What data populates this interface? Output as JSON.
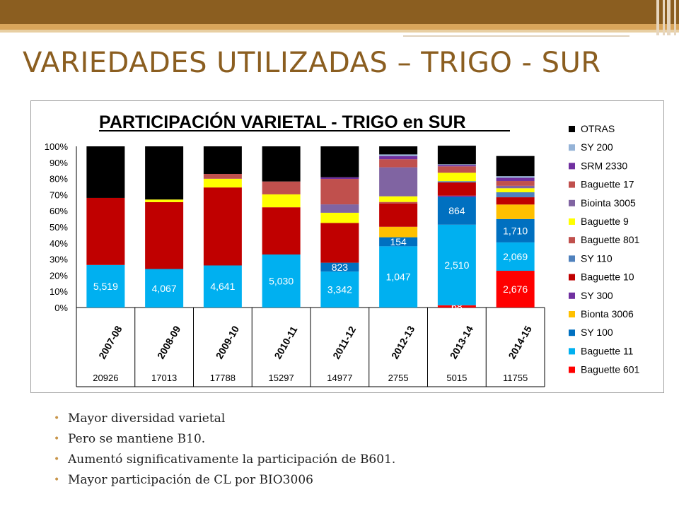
{
  "slide": {
    "title": "VARIEDADES UTILIZADAS – TRIGO - SUR",
    "bullets": [
      "Mayor diversidad varietal",
      "Pero se mantiene B10.",
      "Aumentó significativamente la participación de B601.",
      "Mayor participación de CL por BIO3006"
    ]
  },
  "chart_data": {
    "type": "bar",
    "stacked": "percent",
    "title": "PARTICIPACIÓN VARIETAL - TRIGO en SUR",
    "categories": [
      "2007-08",
      "2008-09",
      "2009-10",
      "2010-11",
      "2011-12",
      "2012-13",
      "2013-14",
      "2014-15"
    ],
    "totals": [
      "20926",
      "17013",
      "17788",
      "15297",
      "14977",
      "2755",
      "5015",
      "11755"
    ],
    "yticks": [
      "0%",
      "10%",
      "20%",
      "30%",
      "40%",
      "50%",
      "60%",
      "70%",
      "80%",
      "90%",
      "100%"
    ],
    "ylim": [
      0,
      100
    ],
    "legend_position": "right",
    "series": [
      {
        "name": "Baguette 601",
        "color": "#ff0000",
        "values": [
          0,
          0,
          0,
          0,
          0,
          0,
          1.4,
          22.8
        ],
        "labels": [
          "",
          "",
          "",
          "",
          "",
          "",
          "68",
          "2,676"
        ]
      },
      {
        "name": "Baguette 11",
        "color": "#00b0f0",
        "values": [
          26.4,
          23.9,
          26.1,
          32.9,
          22.3,
          38.0,
          50.0,
          17.6
        ],
        "labels": [
          "5,519",
          "4,067",
          "4,641",
          "5,030",
          "3,342",
          "1,047",
          "2,510",
          "2,069"
        ]
      },
      {
        "name": "SY 100",
        "color": "#0070c0",
        "values": [
          0,
          0,
          0,
          0,
          5.5,
          5.6,
          17.2,
          14.5
        ],
        "labels": [
          "",
          "",
          "",
          "",
          "823",
          "154",
          "864",
          "1,710"
        ]
      },
      {
        "name": "Bionta 3006",
        "color": "#ffc000",
        "values": [
          0,
          0,
          0,
          0,
          0,
          6.5,
          0,
          9.0
        ],
        "labels": []
      },
      {
        "name": "SY 300",
        "color": "#7030a0",
        "values": [
          0,
          0,
          0,
          0,
          0,
          0,
          0.8,
          0
        ],
        "labels": []
      },
      {
        "name": "Baguette 10",
        "color": "#c00000",
        "values": [
          41.6,
          41.5,
          48.4,
          29.3,
          24.7,
          14.4,
          8.2,
          4.5
        ],
        "labels": []
      },
      {
        "name": "SY 110",
        "color": "#4f81bd",
        "values": [
          0,
          0,
          0,
          0,
          0,
          0,
          0.8,
          3.1
        ],
        "labels": []
      },
      {
        "name": "Baguette 801",
        "color": "#c0504d",
        "values": [
          0,
          0,
          0,
          0,
          0,
          1.0,
          0,
          0
        ],
        "labels": []
      },
      {
        "name": "Baguette 9",
        "color": "#ffff00",
        "values": [
          0,
          1.6,
          5.4,
          8.0,
          6.3,
          3.5,
          5.2,
          2.5
        ],
        "labels": []
      },
      {
        "name": "Biointa 3005",
        "color": "#8064a2",
        "values": [
          0,
          0,
          0,
          0,
          5.2,
          18.0,
          0,
          1.5
        ],
        "labels": []
      },
      {
        "name": "Baguette 17",
        "color": "#c0504d",
        "values": [
          0,
          0,
          3.0,
          8.0,
          15.8,
          5.0,
          4.0,
          3.0
        ],
        "labels": []
      },
      {
        "name": "SRM 2330",
        "color": "#7030a0",
        "values": [
          0,
          0,
          0,
          0,
          1.0,
          2.0,
          0.8,
          2.0
        ],
        "labels": []
      },
      {
        "name": "SY 200",
        "color": "#95b3d7",
        "values": [
          0,
          0,
          0,
          0,
          0,
          1.0,
          0.5,
          1.0
        ],
        "labels": []
      },
      {
        "name": "OTRAS",
        "color": "#000000",
        "values": [
          32.0,
          33.0,
          17.1,
          21.8,
          19.2,
          5.0,
          11.5,
          12.5
        ],
        "labels": []
      }
    ],
    "legend_order": [
      "OTRAS",
      "SY 200",
      "SRM 2330",
      "Baguette 17",
      "Biointa 3005",
      "Baguette 9",
      "Baguette 801",
      "SY 110",
      "Baguette 10",
      "SY 300",
      "Bionta 3006",
      "SY 100",
      "Baguette 11",
      "Baguette 601"
    ]
  }
}
